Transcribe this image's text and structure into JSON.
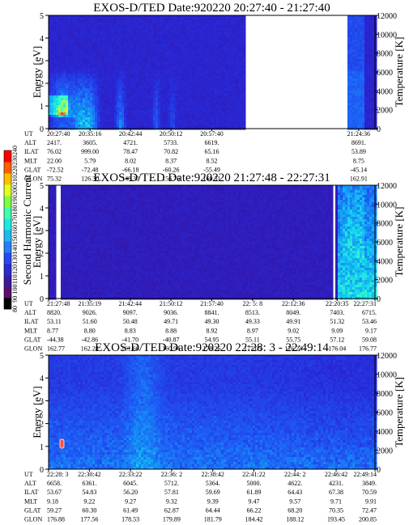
{
  "chart_data": {
    "type": "heatmap",
    "instrument": "EXOS-D/TED",
    "colorbar": {
      "label": "Second Harmonic Current",
      "ticks": [
        "80",
        "140",
        "200",
        "240"
      ],
      "tick_labels": [
        "80",
        "90",
        "100",
        "110",
        "120",
        "130",
        "140",
        "150",
        "160",
        "170",
        "180",
        "190",
        "200",
        "210",
        "220",
        "230",
        "240"
      ],
      "colors": [
        "#000000",
        "#5a0f6e",
        "#3a1aa0",
        "#2a2ad0",
        "#2848f0",
        "#2a7cf8",
        "#20b8f0",
        "#20e8e0",
        "#40ffb0",
        "#80ff40",
        "#e0ff20",
        "#ffc000",
        "#ff6000",
        "#ff0000"
      ]
    },
    "panels": [
      {
        "title": "EXOS-D/TED   Date:920220  20:27:40 - 21:27:40",
        "ylabel": "Energy [eV]",
        "ylabel_right": "Temperature [K]",
        "ylim": [
          0,
          5
        ],
        "y_ticks": [
          "0",
          "1",
          "2",
          "3",
          "4",
          "5"
        ],
        "y2lim": [
          0,
          12000
        ],
        "y2_ticks": [
          "0",
          "2000",
          "4000",
          "6000",
          "8000",
          "10000",
          "12000"
        ],
        "data_gaps": [
          [
            0.604,
            0.918
          ]
        ],
        "ephemeris": {
          "row_labels": [
            "UT",
            "ALT",
            "ILAT",
            "MLT",
            "GLAT",
            "GLON"
          ],
          "columns": [
            {
              "ut": "20:27:40",
              "pos": 0.0,
              "vals": [
                "2417.",
                "76.02",
                "22.00",
                "-72.52",
                "75.32"
              ]
            },
            {
              "ut": "20:35:16",
              "pos": 0.127,
              "vals": [
                "3605.",
                "999.00",
                "5.79",
                "-72.48",
                "126.30"
              ]
            },
            {
              "ut": "20:42:44",
              "pos": 0.251,
              "vals": [
                "4721.",
                "78.47",
                "8.02",
                "-66.18",
                "148.30"
              ]
            },
            {
              "ut": "20:50:12",
              "pos": 0.375,
              "vals": [
                "5733.",
                "70.82",
                "8.37",
                "-60.26",
                "156.76"
              ]
            },
            {
              "ut": "20:57:40",
              "pos": 0.5,
              "vals": [
                "6619.",
                "65.16",
                "8.52",
                "-55.49",
                "160.51"
              ]
            },
            {
              "ut": "21:24:36",
              "pos": 0.95,
              "vals": [
                "8691.",
                "53.89",
                "8.75",
                "-45.14",
                "162.91"
              ]
            }
          ]
        }
      },
      {
        "title": "EXOS-D/TED   Date:920220  21:27:48 - 22:27:31",
        "ylabel": "Energy [eV]",
        "ylabel_right": "Temperature [K]",
        "ylim": [
          0,
          5
        ],
        "y_ticks": [
          "0",
          "1",
          "2",
          "3",
          "4",
          "5"
        ],
        "y2lim": [
          0,
          12000
        ],
        "y2_ticks": [
          "0",
          "2000",
          "4000",
          "6000",
          "8000",
          "10000",
          "12000"
        ],
        "data_gaps": [
          [
            0.022,
            0.034
          ],
          [
            0.868,
            0.878
          ]
        ],
        "ephemeris": {
          "row_labels": [
            "UT",
            "ALT",
            "ILAT",
            "MLT",
            "GLAT",
            "GLON"
          ],
          "columns": [
            {
              "ut": "21:27:48",
              "pos": 0.0,
              "vals": [
                "8820.",
                "53.11",
                "8.77",
                "-44.38",
                "162.77"
              ]
            },
            {
              "ut": "21:35:19",
              "pos": 0.126,
              "vals": [
                "9026.",
                "51.60",
                "8.80",
                "-42.86",
                "162.28"
              ]
            },
            {
              "ut": "21:42:44",
              "pos": 0.25,
              "vals": [
                "9097.",
                "50.48",
                "8.83",
                "-41.70",
                "161.66"
              ]
            },
            {
              "ut": "21:50:12",
              "pos": 0.375,
              "vals": [
                "9036.",
                "49.71",
                "8.88",
                "-40.87",
                "160.94"
              ]
            },
            {
              "ut": "21:57:40",
              "pos": 0.5,
              "vals": [
                "8841.",
                "49.30",
                "8.92",
                "54.95",
                "178.26"
              ]
            },
            {
              "ut": "22: 5: 8",
              "pos": 0.625,
              "vals": [
                "8513.",
                "49.33",
                "8.97",
                "55.11",
                "177.05"
              ]
            },
            {
              "ut": "22:12:36",
              "pos": 0.75,
              "vals": [
                "8049.",
                "49.91",
                "9.02",
                "55.75",
                "176.24"
              ]
            },
            {
              "ut": "22:20:35",
              "pos": 0.884,
              "vals": [
                "7403.",
                "51.32",
                "9.09",
                "57.12",
                "176.04"
              ]
            },
            {
              "ut": "22:27:31",
              "pos": 1.0,
              "vals": [
                "6715.",
                "53.46",
                "9.17",
                "59.08",
                "176.77"
              ]
            }
          ]
        }
      },
      {
        "title": "EXOS-D/TED   Date:920220  22:28: 3 - 22:49:14",
        "ylabel": "Energy [eV]",
        "ylabel_right": "Temperature [K]",
        "ylim": [
          0,
          5
        ],
        "y_ticks": [
          "0",
          "1",
          "2",
          "3",
          "4",
          "5"
        ],
        "y2lim": [
          0,
          12000
        ],
        "y2_ticks": [
          "0",
          "2000",
          "4000",
          "6000",
          "8000",
          "10000",
          "12000"
        ],
        "data_gaps": [],
        "ephemeris": {
          "row_labels": [
            "UT",
            "ALT",
            "ILAT",
            "MLT",
            "GLAT",
            "GLON"
          ],
          "columns": [
            {
              "ut": "22:28: 3",
              "pos": 0.0,
              "vals": [
                "6658.",
                "53.67",
                "9.18",
                "59.27",
                "176.88"
              ]
            },
            {
              "ut": "22:30:42",
              "pos": 0.125,
              "vals": [
                "6361.",
                "54.83",
                "9.22",
                "60.30",
                "177.56"
              ]
            },
            {
              "ut": "22:33:22",
              "pos": 0.251,
              "vals": [
                "6045.",
                "56.20",
                "9.27",
                "61.49",
                "178.53"
              ]
            },
            {
              "ut": "22:36: 2",
              "pos": 0.377,
              "vals": [
                "5712.",
                "57.81",
                "9.32",
                "62.87",
                "179.89"
              ]
            },
            {
              "ut": "22:38:42",
              "pos": 0.503,
              "vals": [
                "5364.",
                "59.69",
                "9.39",
                "64.44",
                "181.79"
              ]
            },
            {
              "ut": "22:41:22",
              "pos": 0.629,
              "vals": [
                "5000.",
                "61.89",
                "9.47",
                "66.22",
                "184.42"
              ]
            },
            {
              "ut": "22:44: 2",
              "pos": 0.755,
              "vals": [
                "4622.",
                "64.43",
                "9.57",
                "68.20",
                "188.12"
              ]
            },
            {
              "ut": "22:46:42",
              "pos": 0.881,
              "vals": [
                "4231.",
                "67.38",
                "9.71",
                "70.35",
                "193.45"
              ]
            },
            {
              "ut": "22:49:14",
              "pos": 1.0,
              "vals": [
                "3849.",
                "70.59",
                "9.91",
                "72.47",
                "200.85"
              ]
            }
          ]
        }
      }
    ]
  }
}
